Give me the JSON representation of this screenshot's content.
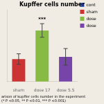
{
  "chart_data": {
    "type": "bar",
    "title": "Kupffer cells number",
    "categories": [
      "sham",
      "dose 17",
      "dose 5.5"
    ],
    "values": [
      30,
      68,
      33
    ],
    "errors": [
      7,
      9,
      11
    ],
    "colors": [
      "#cc3333",
      "#88bb44",
      "#7744aa"
    ],
    "legend": "right",
    "legend_labels": [
      "cont",
      "sham",
      "dose",
      "dose"
    ],
    "legend_colors": [
      "#4466cc",
      "#cc3333",
      "#88bb44",
      "#7744aa"
    ],
    "annotations": [
      {
        "category": "dose 17",
        "text": "***"
      }
    ],
    "caption": "arison of kupffer cells number in the experiment\n(* P <0.05, ** P <0.01, *** P <0.001)",
    "ylim": [
      0,
      95
    ],
    "yticks": [],
    "grid": false,
    "tick_labels": "x"
  }
}
